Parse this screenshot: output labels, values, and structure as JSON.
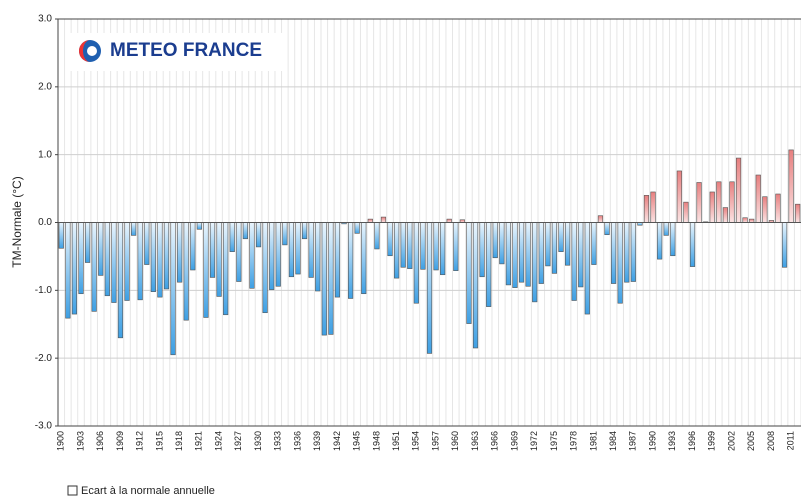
{
  "chart_data": {
    "type": "bar",
    "logo": "METEO FRANCE",
    "y_label": "TM-Normale (°C)",
    "legend": "Ecart à la normale annuelle",
    "categories": [
      "1900",
      null,
      null,
      "1903",
      null,
      null,
      "1906",
      null,
      null,
      "1909",
      null,
      null,
      "1912",
      null,
      null,
      "1915",
      null,
      null,
      "1918",
      null,
      null,
      "1921",
      null,
      null,
      "1924",
      null,
      null,
      "1927",
      null,
      null,
      "1930",
      null,
      null,
      "1933",
      null,
      null,
      "1936",
      null,
      null,
      "1939",
      null,
      null,
      "1942",
      null,
      null,
      "1945",
      null,
      null,
      "1948",
      null,
      null,
      "1951",
      null,
      null,
      "1954",
      null,
      null,
      "1957",
      null,
      null,
      "1960",
      null,
      null,
      "1963",
      null,
      null,
      "1966",
      null,
      null,
      "1969",
      null,
      null,
      "1972",
      null,
      null,
      "1975",
      null,
      null,
      "1978",
      null,
      null,
      "1981",
      null,
      null,
      "1984",
      null,
      null,
      "1987",
      null,
      null,
      "1990",
      null,
      null,
      "1993",
      null,
      null,
      "1996",
      null,
      null,
      "1999",
      null,
      null,
      "2002",
      null,
      null,
      "2005",
      null,
      null,
      "2008",
      null,
      null,
      "2011",
      null
    ],
    "values": [
      -0.38,
      -1.41,
      -1.35,
      -1.05,
      -0.59,
      -1.31,
      -0.78,
      -1.08,
      -1.18,
      -1.7,
      -1.15,
      -0.19,
      -1.14,
      -0.62,
      -1.02,
      -1.1,
      -0.98,
      -1.95,
      -0.88,
      -1.44,
      -0.7,
      -0.1,
      -1.4,
      -0.81,
      -1.09,
      -1.36,
      -0.43,
      -0.87,
      -0.24,
      -0.97,
      -0.36,
      -1.33,
      -0.99,
      -0.94,
      -0.33,
      -0.8,
      -0.76,
      -0.24,
      -0.81,
      -1.01,
      -1.66,
      -1.65,
      -1.1,
      -0.02,
      -1.12,
      -0.16,
      -1.05,
      0.05,
      -0.39,
      0.08,
      -0.49,
      -0.82,
      -0.66,
      -0.68,
      -1.19,
      -0.69,
      -1.93,
      -0.7,
      -0.77,
      0.05,
      -0.71,
      0.04,
      -1.49,
      -1.85,
      -0.8,
      -1.24,
      -0.52,
      -0.61,
      -0.92,
      -0.96,
      -0.88,
      -0.94,
      -1.17,
      -0.9,
      -0.64,
      -0.75,
      -0.43,
      -0.63,
      -1.15,
      -0.95,
      -1.35,
      -0.62,
      0.1,
      -0.18,
      -0.9,
      -1.19,
      -0.88,
      -0.87,
      -0.04,
      0.4,
      0.45,
      -0.54,
      -0.19,
      -0.49,
      0.76,
      0.3,
      -0.65,
      0.59,
      0.01,
      0.45,
      0.6,
      0.22,
      0.6,
      0.95,
      0.07,
      0.05,
      0.7,
      0.38,
      0.03,
      0.42,
      -0.66,
      1.07,
      0.27
    ],
    "colors": {
      "negative": "#3d9fe3",
      "positive": "#e77f7f"
    },
    "ylim": [
      -3,
      3
    ],
    "yticks": [
      {
        "value": -3,
        "label": "-3.0"
      },
      {
        "value": -2,
        "label": "-2.0"
      },
      {
        "value": -1,
        "label": "-1.0"
      },
      {
        "value": 0,
        "label": "0.0"
      },
      {
        "value": 1,
        "label": "1.0"
      },
      {
        "value": 2,
        "label": "2.0"
      },
      {
        "value": 3,
        "label": "3.0"
      }
    ],
    "grid": true
  }
}
